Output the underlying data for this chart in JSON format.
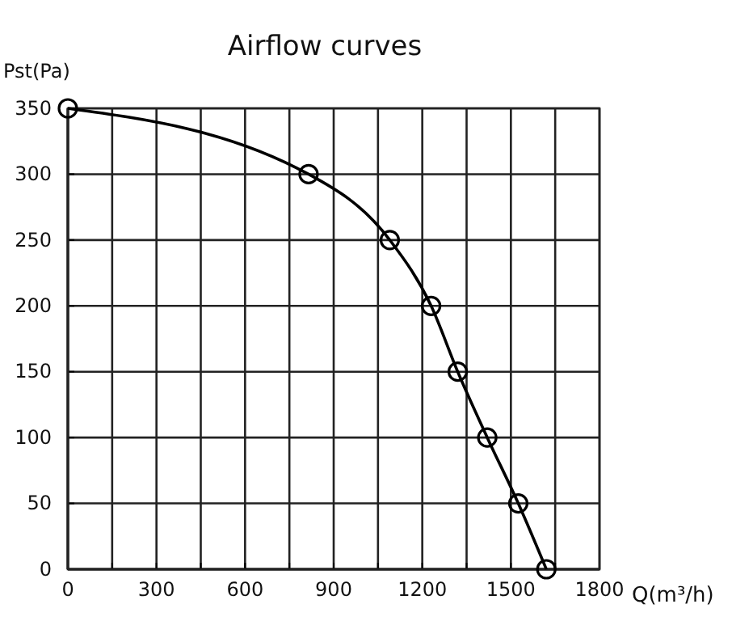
{
  "chart_data": {
    "type": "line",
    "title": "Airflow curves",
    "xlabel": "Q(m³/h)",
    "ylabel": "Pst(Pa)",
    "x": [
      0,
      815,
      1090,
      1230,
      1320,
      1420,
      1525,
      1620
    ],
    "series": [
      {
        "color": "#000000",
        "values": [
          350,
          300,
          250,
          200,
          150,
          100,
          50,
          0
        ]
      }
    ],
    "xlim": [
      0,
      1800
    ],
    "ylim": [
      0,
      350
    ],
    "xticks": [
      0,
      {
        "value": 150,
        "label": null
      },
      300,
      {
        "value": 450,
        "label": null
      },
      600,
      {
        "value": 750,
        "label": null
      },
      900,
      {
        "value": 1050,
        "label": null
      },
      1200,
      {
        "value": 1350,
        "label": null
      },
      1500,
      {
        "value": 1650,
        "label": null
      },
      1800
    ],
    "yticks": [
      0,
      50,
      100,
      150,
      200,
      250,
      300,
      350
    ],
    "grid": true,
    "marker": "circle",
    "line_style": "solid"
  }
}
